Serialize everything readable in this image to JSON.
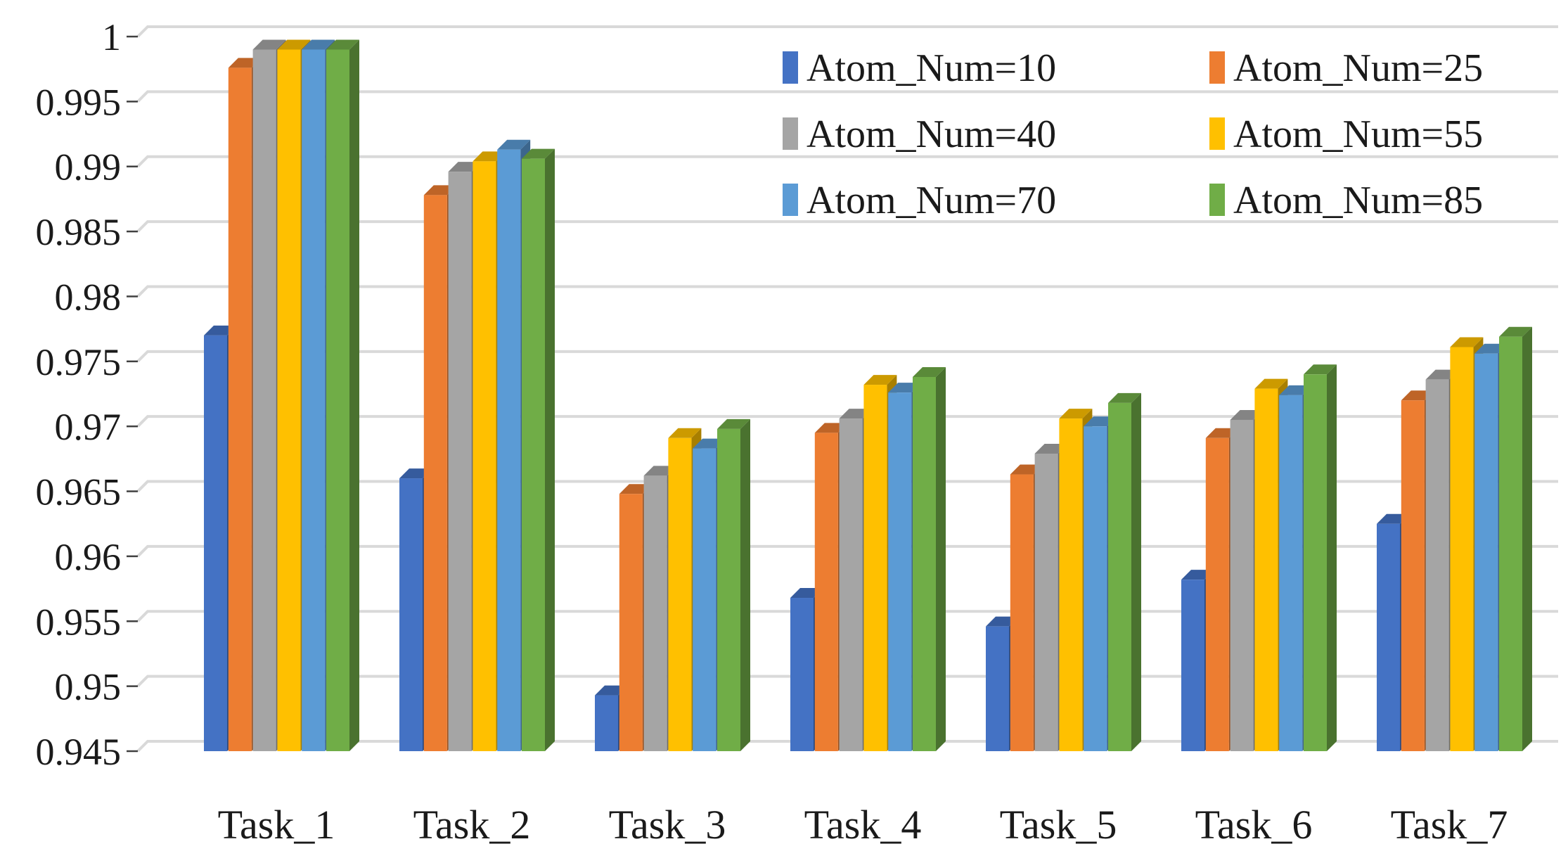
{
  "chart_data": {
    "type": "bar",
    "projection": "3d",
    "title": "",
    "xlabel": "",
    "ylabel": "",
    "categories": [
      "Task_1",
      "Task_2",
      "Task_3",
      "Task_4",
      "Task_5",
      "Task_6",
      "Task_7"
    ],
    "series": [
      {
        "name": "Atom_Num=10",
        "color": "#4472C4",
        "values": [
          0.977,
          0.966,
          0.9493,
          0.9568,
          0.9546,
          0.9582,
          0.9625
        ]
      },
      {
        "name": "Atom_Num=25",
        "color": "#ED7D31",
        "values": [
          0.9976,
          0.9878,
          0.9648,
          0.9695,
          0.9663,
          0.9691,
          0.972
        ]
      },
      {
        "name": "Atom_Num=40",
        "color": "#A5A5A5",
        "values": [
          0.999,
          0.9896,
          0.9662,
          0.9706,
          0.9679,
          0.9705,
          0.9736
        ]
      },
      {
        "name": "Atom_Num=55",
        "color": "#FFC000",
        "values": [
          0.999,
          0.9904,
          0.9691,
          0.9732,
          0.9706,
          0.9729,
          0.9761
        ]
      },
      {
        "name": "Atom_Num=70",
        "color": "#5B9BD5",
        "values": [
          0.999,
          0.9913,
          0.9683,
          0.9726,
          0.97,
          0.9724,
          0.9756
        ]
      },
      {
        "name": "Atom_Num=85",
        "color": "#70AD47",
        "values": [
          0.999,
          0.9906,
          0.9698,
          0.9738,
          0.9718,
          0.974,
          0.9769
        ]
      }
    ],
    "y_axis": {
      "min": 0.945,
      "max": 1.0,
      "step": 0.005,
      "tick_labels": [
        "1",
        "0.995",
        "0.99",
        "0.985",
        "0.98",
        "0.975",
        "0.97",
        "0.965",
        "0.96",
        "0.955",
        "0.95",
        "0.945"
      ]
    },
    "legend": {
      "position": "top-right",
      "columns": 2,
      "entries": [
        "Atom_Num=10",
        "Atom_Num=25",
        "Atom_Num=40",
        "Atom_Num=55",
        "Atom_Num=70",
        "Atom_Num=85"
      ]
    },
    "grid": true,
    "background_color": "#FFFFFF",
    "gridline_color": "#D9D9D9",
    "tick_color": "#404040",
    "text_color": "#1A1A1A"
  }
}
